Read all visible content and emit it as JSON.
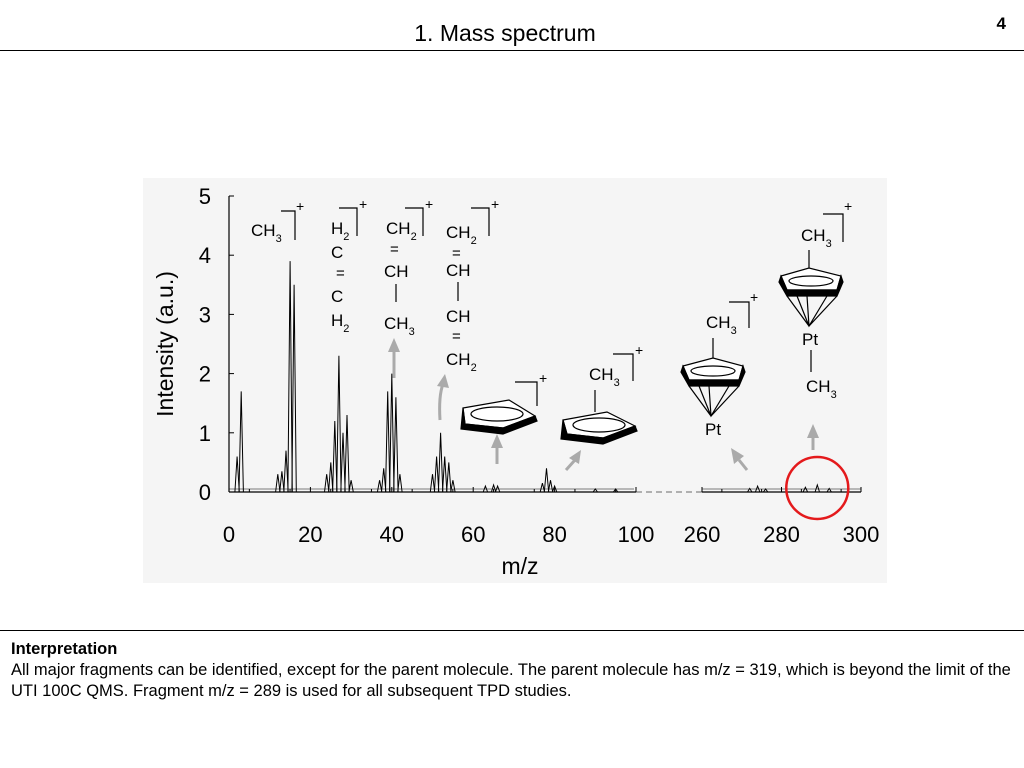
{
  "slide": {
    "title": "1. Mass spectrum",
    "page_number": "4"
  },
  "interpretation": {
    "heading": "Interpretation",
    "body": "All major fragments can be identified, except for the parent molecule. The parent molecule has m/z = 319, which is beyond the limit of the UTI 100C QMS. Fragment m/z = 289 is used for all subsequent TPD studies."
  },
  "chart_data": {
    "type": "line",
    "title": "",
    "xlabel": "m/z",
    "ylabel": "Intensity (a.u.)",
    "xlim_segments": [
      [
        0,
        100
      ],
      [
        260,
        300
      ]
    ],
    "ylim": [
      0,
      5
    ],
    "x_ticks": [
      "0",
      "20",
      "40",
      "60",
      "80",
      "100",
      "260",
      "280",
      "300"
    ],
    "y_ticks": [
      "0",
      "1",
      "2",
      "3",
      "4",
      "5"
    ],
    "axis_break": "dashed between 100 and 260",
    "peaks": [
      {
        "mz": 2,
        "intensity": 0.6
      },
      {
        "mz": 3,
        "intensity": 1.7
      },
      {
        "mz": 12,
        "intensity": 0.3
      },
      {
        "mz": 13,
        "intensity": 0.35
      },
      {
        "mz": 14,
        "intensity": 0.7
      },
      {
        "mz": 15,
        "intensity": 3.9
      },
      {
        "mz": 16,
        "intensity": 3.5
      },
      {
        "mz": 24,
        "intensity": 0.3
      },
      {
        "mz": 25,
        "intensity": 0.5
      },
      {
        "mz": 26,
        "intensity": 1.2
      },
      {
        "mz": 27,
        "intensity": 2.3
      },
      {
        "mz": 28,
        "intensity": 1.0
      },
      {
        "mz": 29,
        "intensity": 1.3
      },
      {
        "mz": 30,
        "intensity": 0.2
      },
      {
        "mz": 37,
        "intensity": 0.2
      },
      {
        "mz": 38,
        "intensity": 0.4
      },
      {
        "mz": 39,
        "intensity": 1.7
      },
      {
        "mz": 40,
        "intensity": 2.0
      },
      {
        "mz": 41,
        "intensity": 1.6
      },
      {
        "mz": 42,
        "intensity": 0.3
      },
      {
        "mz": 50,
        "intensity": 0.3
      },
      {
        "mz": 51,
        "intensity": 0.6
      },
      {
        "mz": 52,
        "intensity": 1.0
      },
      {
        "mz": 53,
        "intensity": 0.6
      },
      {
        "mz": 54,
        "intensity": 0.5
      },
      {
        "mz": 55,
        "intensity": 0.2
      },
      {
        "mz": 63,
        "intensity": 0.1
      },
      {
        "mz": 65,
        "intensity": 0.12
      },
      {
        "mz": 66,
        "intensity": 0.1
      },
      {
        "mz": 77,
        "intensity": 0.15
      },
      {
        "mz": 78,
        "intensity": 0.4
      },
      {
        "mz": 79,
        "intensity": 0.2
      },
      {
        "mz": 80,
        "intensity": 0.1
      },
      {
        "mz": 90,
        "intensity": 0.05
      },
      {
        "mz": 95,
        "intensity": 0.05
      },
      {
        "mz": 272,
        "intensity": 0.06
      },
      {
        "mz": 274,
        "intensity": 0.1
      },
      {
        "mz": 276,
        "intensity": 0.05
      },
      {
        "mz": 286,
        "intensity": 0.08
      },
      {
        "mz": 289,
        "intensity": 0.12
      },
      {
        "mz": 292,
        "intensity": 0.06
      }
    ],
    "highlight": {
      "mz": 289,
      "shape": "red circle"
    },
    "annotations": [
      {
        "label": "CH3+",
        "mz": 15
      },
      {
        "label": "H2C=CH2+",
        "mz": 28
      },
      {
        "label": "CH2=CH-CH3+",
        "mz": 41
      },
      {
        "label": "CH2=CH-CH=CH2+",
        "mz": 54
      },
      {
        "label": "C5H5+",
        "mz": 65
      },
      {
        "label": "CH3C5H4+",
        "mz": 80
      },
      {
        "label": "CH3C5H4Pt+",
        "mz": 274
      },
      {
        "label": "CH3C5H4PtCH3+",
        "mz": 289
      }
    ]
  },
  "structures": {
    "plus": "+",
    "ch3": "CH3",
    "ch3_base": "CH",
    "sub_3": "3",
    "sub_2": "2",
    "ch2_base": "CH",
    "ch": "CH",
    "h_base": "H",
    "c": "C",
    "dbl": "=",
    "pt": "Pt"
  }
}
